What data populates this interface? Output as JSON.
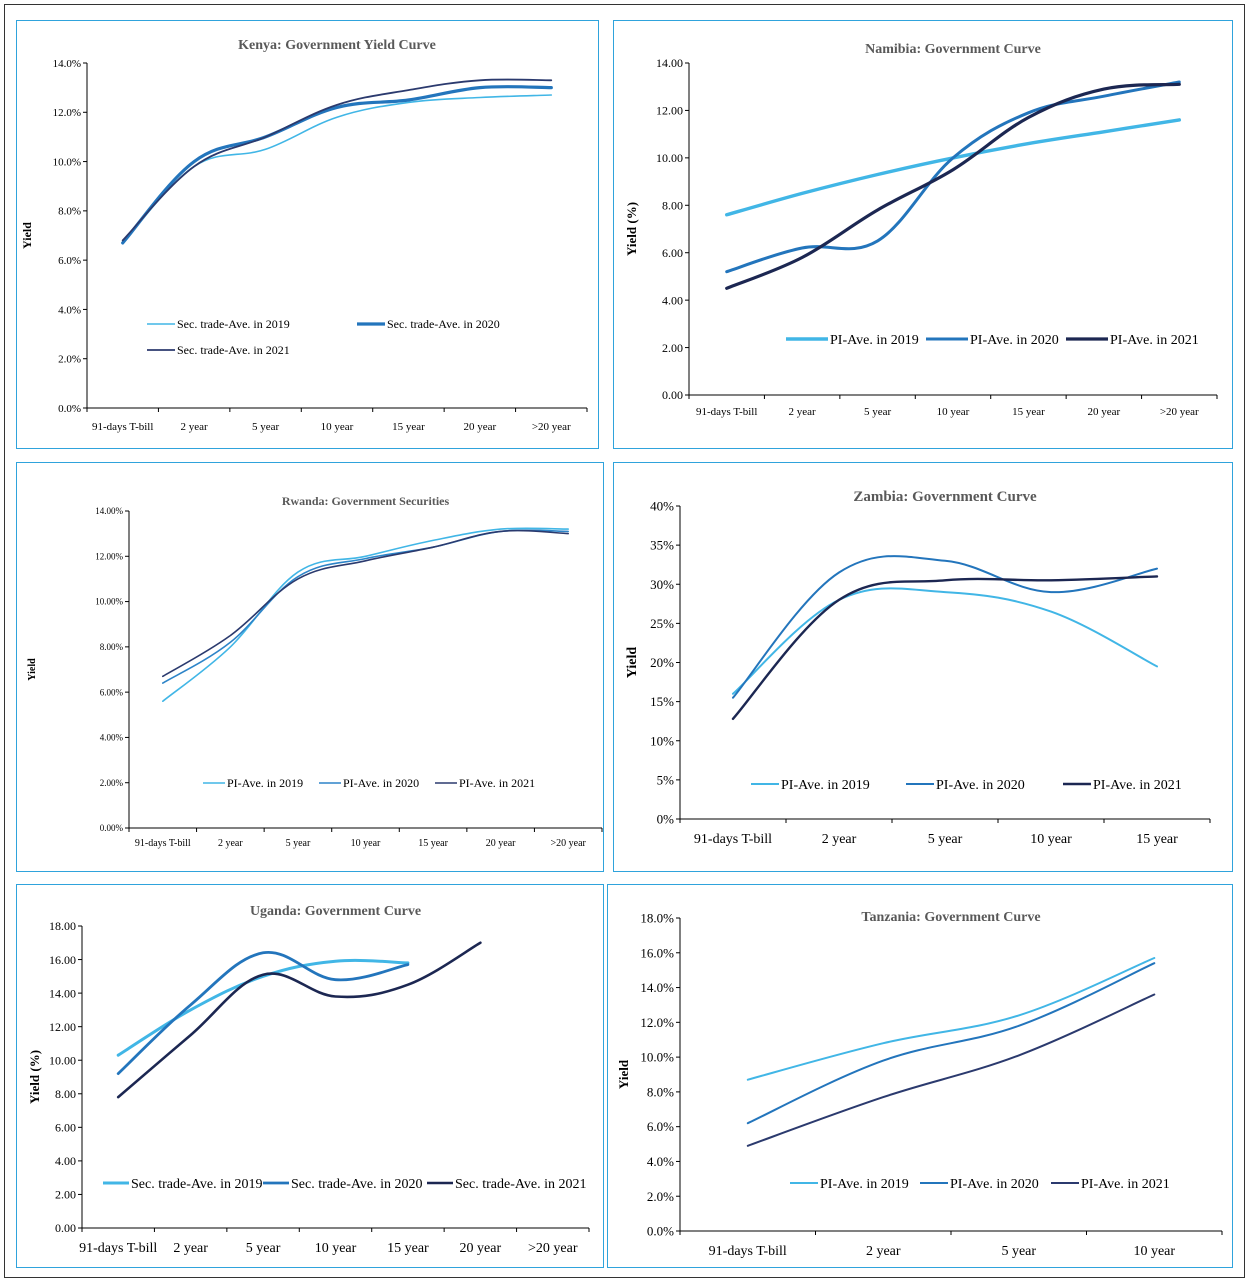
{
  "chart_data": [
    {
      "type": "line",
      "title": "Kenya: Government Yield Curve",
      "ylabel": "Yield",
      "xlabel": "",
      "categories": [
        "91-days T-bill",
        "2 year",
        "5 year",
        "10 year",
        "15 year",
        "20 year",
        ">20 year"
      ],
      "ylim": [
        0,
        14
      ],
      "y_ticks": [
        "0.0%",
        "2.0%",
        "4.0%",
        "6.0%",
        "8.0%",
        "10.0%",
        "12.0%",
        "14.0%"
      ],
      "grid": false,
      "legend_position": "bottom-left inside",
      "series": [
        {
          "name": "Sec. trade-Ave. in 2019",
          "color": "#41b6e6",
          "values": [
            6.7,
            9.8,
            10.5,
            11.8,
            12.4,
            12.6,
            12.7
          ]
        },
        {
          "name": "Sec. trade-Ave. in 2020",
          "color": "#2375bc",
          "values": [
            6.7,
            10.0,
            11.0,
            12.2,
            12.5,
            13.0,
            13.0
          ]
        },
        {
          "name": "Sec. trade-Ave. in 2021",
          "color": "#2b3a6e",
          "values": [
            6.8,
            9.8,
            11.0,
            12.3,
            12.9,
            13.3,
            13.3
          ]
        }
      ]
    },
    {
      "type": "line",
      "title": "Namibia: Government Curve",
      "ylabel": "Yield (%)",
      "xlabel": "",
      "categories": [
        "91-days T-bill",
        "2 year",
        "5 year",
        "10 year",
        "15 year",
        "20 year",
        ">20 year"
      ],
      "ylim": [
        0,
        14
      ],
      "y_ticks": [
        "0.00",
        "2.00",
        "4.00",
        "6.00",
        "8.00",
        "10.00",
        "12.00",
        "14.00"
      ],
      "grid": false,
      "legend_position": "bottom",
      "series": [
        {
          "name": "PI-Ave. in 2019",
          "color": "#41b6e6",
          "values": [
            7.6,
            8.5,
            9.3,
            10.0,
            10.6,
            11.1,
            11.6
          ]
        },
        {
          "name": "PI-Ave. in 2020",
          "color": "#2375bc",
          "values": [
            5.2,
            6.2,
            6.5,
            10.0,
            11.9,
            12.6,
            13.2
          ]
        },
        {
          "name": "PI-Ave. in 2021",
          "color": "#1c2752",
          "values": [
            4.5,
            5.8,
            7.8,
            9.5,
            11.7,
            12.9,
            13.1
          ]
        }
      ]
    },
    {
      "type": "line",
      "title": "Rwanda: Government Securities",
      "ylabel": "Yield",
      "xlabel": "",
      "categories": [
        "91-days T-bill",
        "2 year",
        "5 year",
        "10 year",
        "15 year",
        "20 year",
        ">20 year"
      ],
      "ylim": [
        0,
        14
      ],
      "y_ticks": [
        "0.00%",
        "2.00%",
        "4.00%",
        "6.00%",
        "8.00%",
        "10.00%",
        "12.00%",
        "14.00%"
      ],
      "grid": false,
      "legend_position": "bottom",
      "series": [
        {
          "name": "PI-Ave. in 2019",
          "color": "#41b6e6",
          "values": [
            5.6,
            8.0,
            11.3,
            12.0,
            12.7,
            13.2,
            13.2
          ]
        },
        {
          "name": "PI-Ave. in 2020",
          "color": "#2d84c8",
          "values": [
            6.4,
            8.2,
            11.1,
            11.9,
            12.4,
            13.1,
            13.1
          ]
        },
        {
          "name": "PI-Ave. in 2021",
          "color": "#2b3a6e",
          "values": [
            6.7,
            8.5,
            11.0,
            11.8,
            12.4,
            13.1,
            13.0
          ]
        }
      ]
    },
    {
      "type": "line",
      "title": "Zambia: Government Curve",
      "ylabel": "Yield",
      "xlabel": "",
      "categories": [
        "91-days T-bill",
        "2 year",
        "5 year",
        "10 year",
        "15 year"
      ],
      "ylim": [
        0,
        40
      ],
      "y_ticks": [
        "0%",
        "5%",
        "10%",
        "15%",
        "20%",
        "25%",
        "30%",
        "35%",
        "40%"
      ],
      "grid": false,
      "legend_position": "bottom",
      "series": [
        {
          "name": "PI-Ave. in 2019",
          "color": "#41b6e6",
          "values": [
            16.0,
            28.0,
            29.0,
            26.5,
            19.5
          ]
        },
        {
          "name": "PI-Ave. in 2020",
          "color": "#2375bc",
          "values": [
            15.5,
            31.5,
            33.0,
            29.0,
            32.0
          ]
        },
        {
          "name": "PI-Ave. in 2021",
          "color": "#1c2752",
          "values": [
            12.8,
            28.0,
            30.5,
            30.5,
            31.0
          ]
        }
      ]
    },
    {
      "type": "line",
      "title": "Uganda: Government Curve",
      "ylabel": "Yield (%)",
      "xlabel": "",
      "categories": [
        "91-days T-bill",
        "2 year",
        "5 year",
        "10 year",
        "15 year",
        "20 year",
        ">20 year"
      ],
      "ylim": [
        0,
        18
      ],
      "y_ticks": [
        "0.00",
        "2.00",
        "4.00",
        "6.00",
        "8.00",
        "10.00",
        "12.00",
        "14.00",
        "16.00",
        "18.00"
      ],
      "grid": false,
      "legend_position": "bottom",
      "series": [
        {
          "name": "Sec. trade-Ave. in 2019",
          "color": "#41b6e6",
          "values": [
            10.3,
            13.0,
            15.0,
            15.9,
            15.8,
            null,
            null
          ]
        },
        {
          "name": "Sec. trade-Ave. in 2020",
          "color": "#2375bc",
          "values": [
            9.2,
            13.3,
            16.4,
            14.8,
            15.7,
            null,
            null
          ]
        },
        {
          "name": "Sec. trade-Ave. in 2021",
          "color": "#1c2752",
          "values": [
            7.8,
            11.5,
            15.1,
            13.8,
            14.5,
            17.0,
            null
          ]
        }
      ]
    },
    {
      "type": "line",
      "title": "Tanzania: Government Curve",
      "ylabel": "Yield",
      "xlabel": "",
      "categories": [
        "91-days T-bill",
        "2 year",
        "5 year",
        "10 year"
      ],
      "ylim": [
        0,
        18
      ],
      "y_ticks": [
        "0.0%",
        "2.0%",
        "4.0%",
        "6.0%",
        "8.0%",
        "10.0%",
        "12.0%",
        "14.0%",
        "16.0%",
        "18.0%"
      ],
      "grid": false,
      "legend_position": "bottom",
      "series": [
        {
          "name": "PI-Ave. in 2019",
          "color": "#41b6e6",
          "values": [
            8.7,
            10.8,
            12.4,
            15.7
          ]
        },
        {
          "name": "PI-Ave. in 2020",
          "color": "#2375bc",
          "values": [
            6.2,
            9.8,
            11.8,
            15.4
          ]
        },
        {
          "name": "PI-Ave. in 2021",
          "color": "#2b3a6e",
          "values": [
            4.9,
            7.7,
            10.1,
            13.6
          ]
        }
      ]
    }
  ]
}
